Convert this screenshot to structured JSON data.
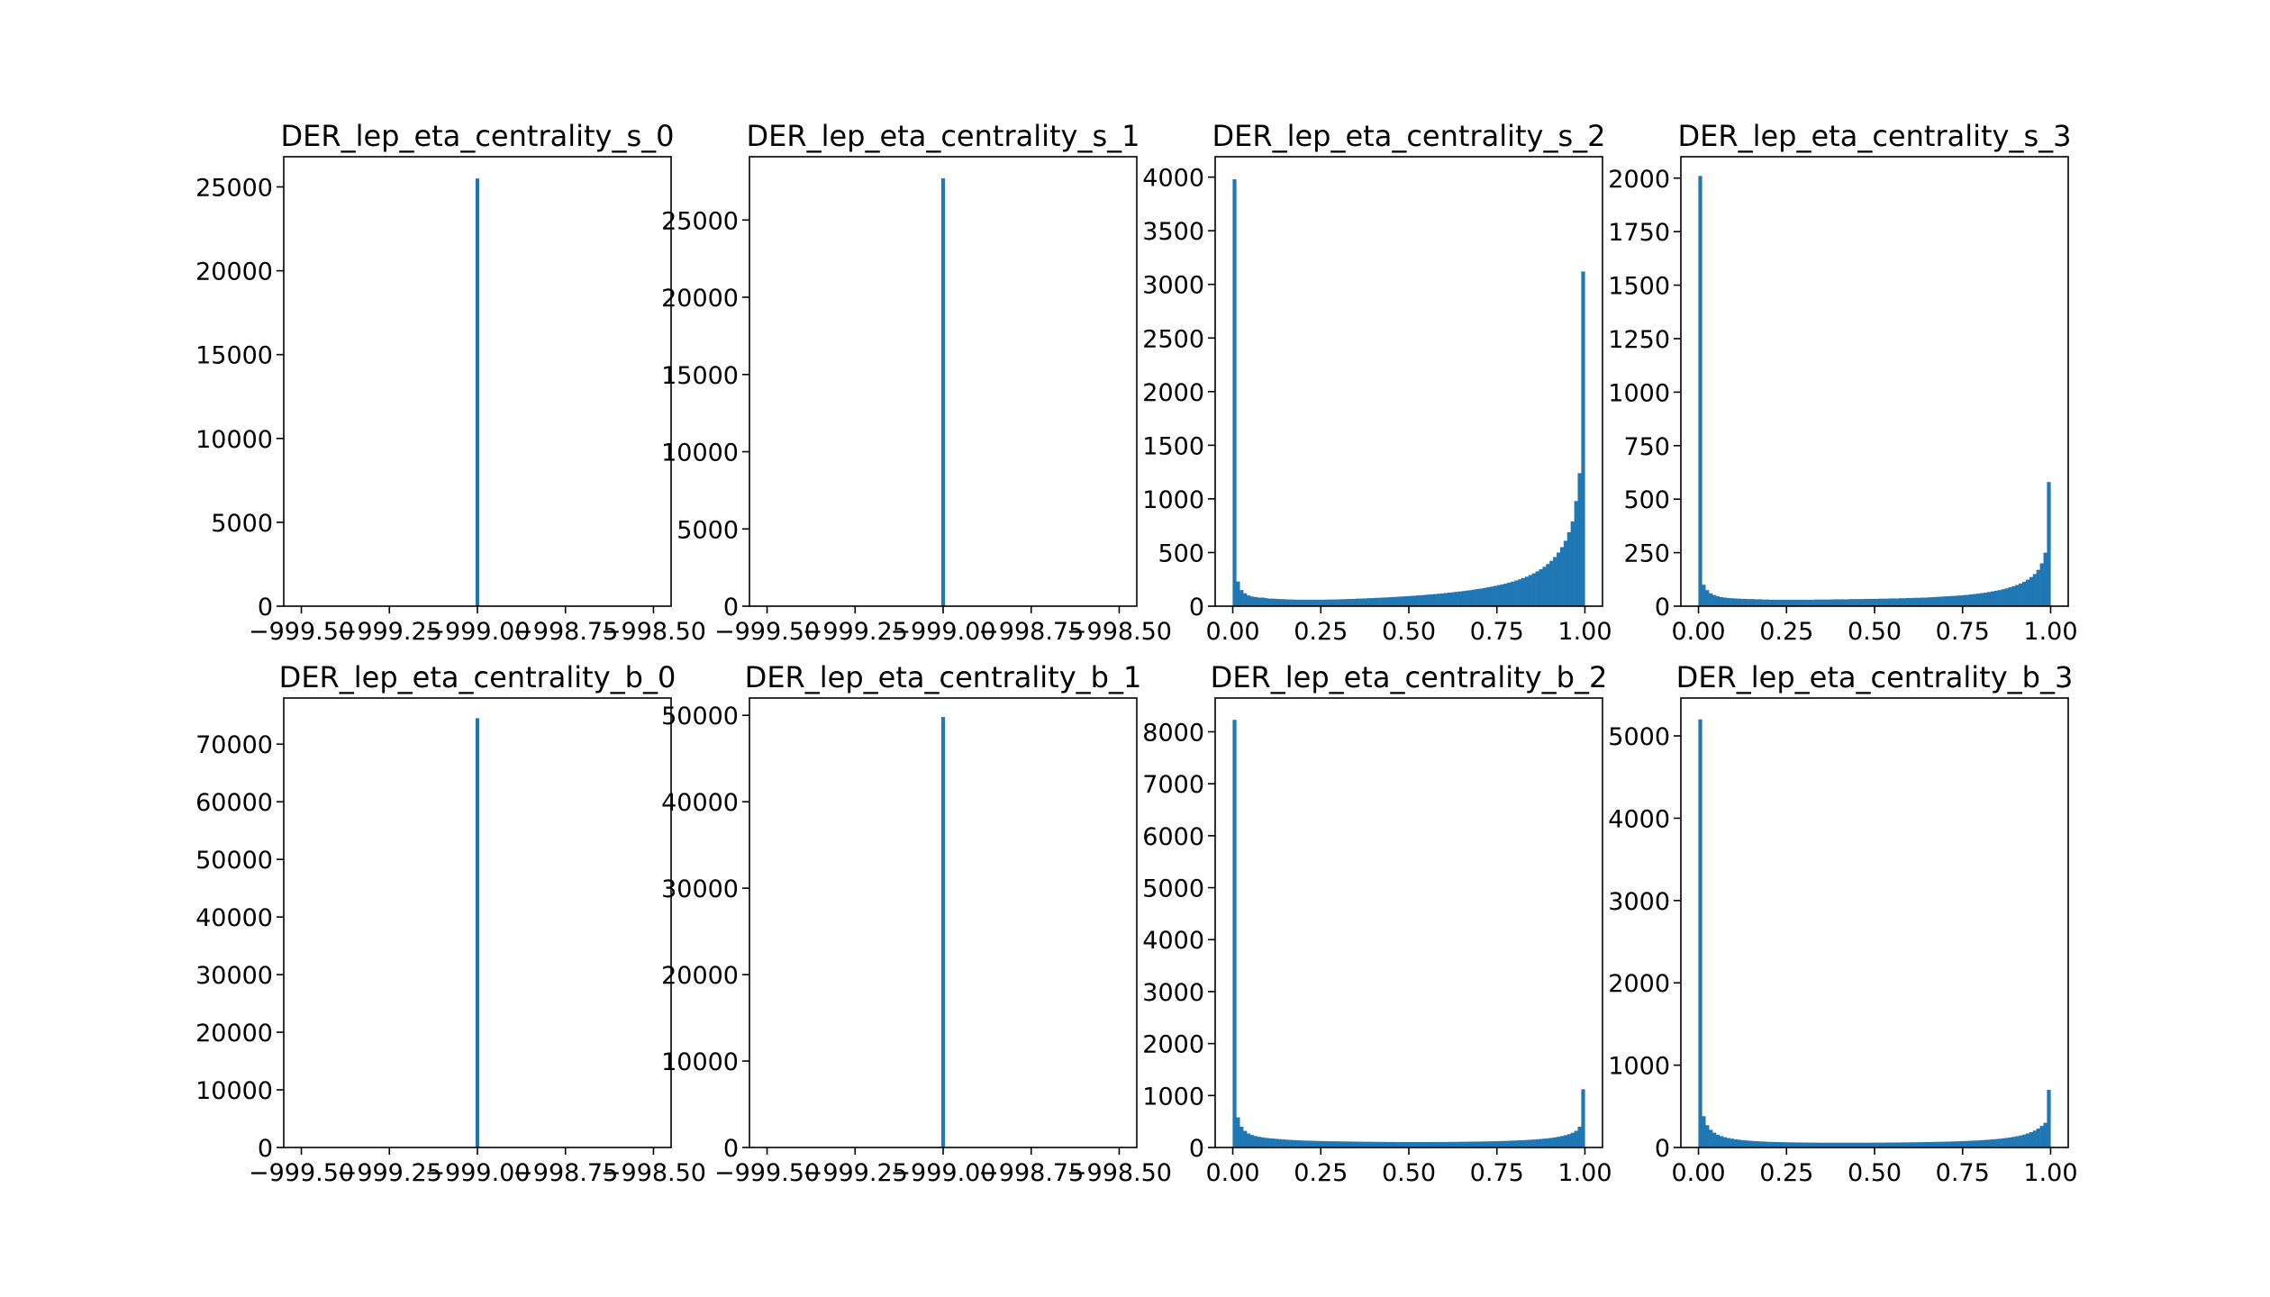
{
  "figure": {
    "bar_color": "#1f77b4",
    "background": "#ffffff"
  },
  "chart_data": [
    {
      "type": "bar",
      "title": "DER_lep_eta_centrality_s_0",
      "xlabel": "",
      "ylabel": "",
      "xlim": [
        -999.55,
        -998.45
      ],
      "ylim": [
        0,
        26800
      ],
      "xticks": [
        -999.5,
        -999.25,
        -999.0,
        -998.75,
        -998.5
      ],
      "xtick_labels": [
        "−999.50",
        "−999.25",
        "−999.00",
        "−998.75",
        "−998.50"
      ],
      "yticks": [
        0,
        5000,
        10000,
        15000,
        20000,
        25000
      ],
      "ytick_labels": [
        "0",
        "5000",
        "10000",
        "15000",
        "20000",
        "25000"
      ],
      "bin_width": 0.01,
      "x": [
        -999.0
      ],
      "values": [
        25500
      ],
      "grid": false
    },
    {
      "type": "bar",
      "title": "DER_lep_eta_centrality_s_1",
      "xlabel": "",
      "ylabel": "",
      "xlim": [
        -999.55,
        -998.45
      ],
      "ylim": [
        0,
        29100
      ],
      "xticks": [
        -999.5,
        -999.25,
        -999.0,
        -998.75,
        -998.5
      ],
      "xtick_labels": [
        "−999.50",
        "−999.25",
        "−999.00",
        "−998.75",
        "−998.50"
      ],
      "yticks": [
        0,
        5000,
        10000,
        15000,
        20000,
        25000
      ],
      "ytick_labels": [
        "0",
        "5000",
        "10000",
        "15000",
        "20000",
        "25000"
      ],
      "bin_width": 0.01,
      "x": [
        -999.0
      ],
      "values": [
        27700
      ],
      "grid": false
    },
    {
      "type": "bar",
      "title": "DER_lep_eta_centrality_s_2",
      "xlabel": "",
      "ylabel": "",
      "xlim": [
        -0.05,
        1.05
      ],
      "ylim": [
        0,
        4190
      ],
      "xticks": [
        0.0,
        0.25,
        0.5,
        0.75,
        1.0
      ],
      "xtick_labels": [
        "0.00",
        "0.25",
        "0.50",
        "0.75",
        "1.00"
      ],
      "yticks": [
        0,
        500,
        1000,
        1500,
        2000,
        2500,
        3000,
        3500,
        4000
      ],
      "ytick_labels": [
        "0",
        "500",
        "1000",
        "1500",
        "2000",
        "2500",
        "3000",
        "3500",
        "4000"
      ],
      "bin_width": 0.01,
      "values": [
        3980,
        230,
        150,
        120,
        100,
        90,
        85,
        80,
        80,
        75,
        70,
        70,
        68,
        66,
        65,
        63,
        62,
        61,
        60,
        60,
        60,
        60,
        60,
        60,
        60,
        60,
        61,
        62,
        62,
        63,
        64,
        65,
        66,
        67,
        68,
        70,
        71,
        72,
        74,
        75,
        77,
        78,
        80,
        81,
        83,
        85,
        87,
        89,
        91,
        93,
        95,
        97,
        100,
        102,
        105,
        108,
        110,
        113,
        116,
        119,
        122,
        126,
        129,
        133,
        137,
        141,
        145,
        149,
        154,
        159,
        164,
        170,
        176,
        182,
        189,
        196,
        203,
        211,
        220,
        229,
        239,
        250,
        262,
        275,
        290,
        306,
        324,
        344,
        367,
        393,
        423,
        458,
        500,
        550,
        610,
        690,
        790,
        980,
        1240,
        3120
      ],
      "grid": false
    },
    {
      "type": "bar",
      "title": "DER_lep_eta_centrality_s_3",
      "xlabel": "",
      "ylabel": "",
      "xlim": [
        -0.05,
        1.05
      ],
      "ylim": [
        0,
        2100
      ],
      "xticks": [
        0.0,
        0.25,
        0.5,
        0.75,
        1.0
      ],
      "xtick_labels": [
        "0.00",
        "0.25",
        "0.50",
        "0.75",
        "1.00"
      ],
      "yticks": [
        0,
        250,
        500,
        750,
        1000,
        1250,
        1500,
        1750,
        2000
      ],
      "ytick_labels": [
        "0",
        "250",
        "500",
        "750",
        "1000",
        "1250",
        "1500",
        "1750",
        "2000"
      ],
      "bin_width": 0.01,
      "values": [
        2010,
        100,
        75,
        60,
        52,
        46,
        42,
        40,
        38,
        37,
        36,
        35,
        34,
        34,
        33,
        33,
        32,
        32,
        31,
        31,
        30,
        30,
        30,
        30,
        30,
        30,
        30,
        30,
        30,
        30,
        30,
        30,
        30,
        31,
        31,
        31,
        31,
        31,
        32,
        32,
        32,
        32,
        32,
        33,
        33,
        33,
        33,
        34,
        34,
        34,
        34,
        35,
        35,
        35,
        36,
        36,
        36,
        37,
        37,
        38,
        38,
        39,
        39,
        40,
        40,
        41,
        42,
        43,
        44,
        45,
        46,
        47,
        48,
        49,
        50,
        52,
        53,
        55,
        57,
        59,
        61,
        63,
        66,
        69,
        72,
        75,
        79,
        83,
        88,
        93,
        99,
        106,
        114,
        124,
        136,
        150,
        170,
        200,
        250,
        580
      ],
      "grid": false
    },
    {
      "type": "bar",
      "title": "DER_lep_eta_centrality_b_0",
      "xlabel": "",
      "ylabel": "",
      "xlim": [
        -999.55,
        -998.45
      ],
      "ylim": [
        0,
        78000
      ],
      "xticks": [
        -999.5,
        -999.25,
        -999.0,
        -998.75,
        -998.5
      ],
      "xtick_labels": [
        "−999.50",
        "−999.25",
        "−999.00",
        "−998.75",
        "−998.50"
      ],
      "yticks": [
        0,
        10000,
        20000,
        30000,
        40000,
        50000,
        60000,
        70000
      ],
      "ytick_labels": [
        "0",
        "10000",
        "20000",
        "30000",
        "40000",
        "50000",
        "60000",
        "70000"
      ],
      "bin_width": 0.01,
      "x": [
        -999.0
      ],
      "values": [
        74500
      ],
      "grid": false
    },
    {
      "type": "bar",
      "title": "DER_lep_eta_centrality_b_1",
      "xlabel": "",
      "ylabel": "",
      "xlim": [
        -999.55,
        -998.45
      ],
      "ylim": [
        0,
        52000
      ],
      "xticks": [
        -999.5,
        -999.25,
        -999.0,
        -998.75,
        -998.5
      ],
      "xtick_labels": [
        "−999.50",
        "−999.25",
        "−999.00",
        "−998.75",
        "−998.50"
      ],
      "yticks": [
        0,
        10000,
        20000,
        30000,
        40000,
        50000
      ],
      "ytick_labels": [
        "0",
        "10000",
        "20000",
        "30000",
        "40000",
        "50000"
      ],
      "bin_width": 0.01,
      "x": [
        -999.0
      ],
      "values": [
        49800
      ],
      "grid": false
    },
    {
      "type": "bar",
      "title": "DER_lep_eta_centrality_b_2",
      "xlabel": "",
      "ylabel": "",
      "xlim": [
        -0.05,
        1.05
      ],
      "ylim": [
        0,
        8650
      ],
      "xticks": [
        0.0,
        0.25,
        0.5,
        0.75,
        1.0
      ],
      "xtick_labels": [
        "0.00",
        "0.25",
        "0.50",
        "0.75",
        "1.00"
      ],
      "yticks": [
        0,
        1000,
        2000,
        3000,
        4000,
        5000,
        6000,
        7000,
        8000
      ],
      "ytick_labels": [
        "0",
        "1000",
        "2000",
        "3000",
        "4000",
        "5000",
        "6000",
        "7000",
        "8000"
      ],
      "bin_width": 0.01,
      "values": [
        8230,
        580,
        400,
        320,
        270,
        240,
        220,
        205,
        195,
        185,
        178,
        172,
        166,
        160,
        155,
        150,
        146,
        142,
        139,
        136,
        133,
        131,
        129,
        127,
        125,
        123,
        122,
        120,
        119,
        118,
        117,
        116,
        115,
        114,
        113,
        112,
        111,
        110,
        110,
        109,
        108,
        108,
        107,
        107,
        106,
        106,
        105,
        105,
        104,
        104,
        104,
        104,
        104,
        104,
        104,
        104,
        105,
        105,
        105,
        106,
        106,
        107,
        107,
        108,
        109,
        110,
        111,
        112,
        113,
        114,
        115,
        116,
        118,
        119,
        121,
        123,
        125,
        127,
        129,
        132,
        135,
        138,
        141,
        145,
        149,
        153,
        158,
        164,
        170,
        177,
        185,
        195,
        206,
        220,
        236,
        256,
        283,
        320,
        400,
        1120
      ],
      "grid": false
    },
    {
      "type": "bar",
      "title": "DER_lep_eta_centrality_b_3",
      "xlabel": "",
      "ylabel": "",
      "xlim": [
        -0.05,
        1.05
      ],
      "ylim": [
        0,
        5460
      ],
      "xticks": [
        0.0,
        0.25,
        0.5,
        0.75,
        1.0
      ],
      "xtick_labels": [
        "0.00",
        "0.25",
        "0.50",
        "0.75",
        "1.00"
      ],
      "yticks": [
        0,
        1000,
        2000,
        3000,
        4000,
        5000
      ],
      "ytick_labels": [
        "0",
        "1000",
        "2000",
        "3000",
        "4000",
        "5000"
      ],
      "bin_width": 0.01,
      "values": [
        5200,
        380,
        270,
        215,
        180,
        155,
        138,
        125,
        115,
        107,
        100,
        95,
        90,
        86,
        82,
        79,
        76,
        74,
        72,
        70,
        68,
        67,
        66,
        65,
        64,
        63,
        62,
        61,
        61,
        60,
        60,
        59,
        59,
        59,
        58,
        58,
        58,
        58,
        58,
        58,
        58,
        58,
        58,
        58,
        58,
        58,
        58,
        58,
        58,
        59,
        59,
        59,
        59,
        60,
        60,
        60,
        61,
        61,
        62,
        62,
        63,
        63,
        64,
        65,
        66,
        66,
        67,
        68,
        69,
        70,
        71,
        72,
        74,
        75,
        77,
        78,
        80,
        82,
        84,
        86,
        89,
        92,
        95,
        98,
        102,
        106,
        111,
        116,
        122,
        129,
        137,
        146,
        157,
        170,
        186,
        205,
        230,
        262,
        300,
        700
      ],
      "grid": false
    }
  ]
}
